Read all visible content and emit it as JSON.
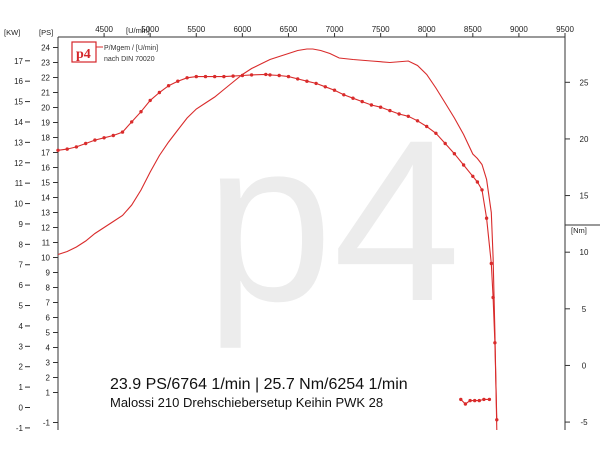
{
  "chart_data": {
    "type": "line",
    "rpm_unit": "[U/min]",
    "left_axis_units": [
      "[KW]",
      "[PS]"
    ],
    "right_axis_unit": "[Nm]",
    "x_ticks": [
      4500,
      5000,
      5500,
      6000,
      6500,
      7000,
      7500,
      8000,
      8500,
      9000,
      9500
    ],
    "xlim": [
      4000,
      9500
    ],
    "kw_ticks": [
      -1,
      0,
      1,
      2,
      3,
      4,
      5,
      6,
      7,
      8,
      9,
      10,
      11,
      12,
      13,
      14,
      15,
      16,
      17
    ],
    "ps_ticks": [
      -1,
      1,
      2,
      3,
      4,
      5,
      6,
      7,
      8,
      9,
      10,
      11,
      12,
      13,
      14,
      15,
      16,
      17,
      18,
      19,
      20,
      21,
      22,
      23,
      24
    ],
    "ps_lim": [
      -1.5,
      24.7
    ],
    "nm_ticks": [
      -5,
      0,
      5,
      10,
      15,
      20,
      25
    ],
    "nm_lim": [
      -5.7,
      29
    ],
    "legend_title": "P/Mgem / [U/min]",
    "legend_subtitle": "nach DIN 70020",
    "logo_text": "p4",
    "watermark_text": "p4",
    "summary_text": "23.9 PS/6764 1/min | 25.7 Nm/6254 1/min",
    "setup_text": "Malossi 210 Drehschiebersetup Keihin PWK 28",
    "series": [
      {
        "name": "P",
        "unit": "PS",
        "color": "#d92b2b",
        "x": [
          4000,
          4100,
          4200,
          4300,
          4400,
          4500,
          4600,
          4700,
          4800,
          4900,
          5000,
          5100,
          5200,
          5300,
          5400,
          5500,
          5600,
          5700,
          5800,
          5900,
          6000,
          6100,
          6200,
          6300,
          6400,
          6500,
          6600,
          6700,
          6764,
          6850,
          6950,
          7050,
          7200,
          7400,
          7600,
          7800,
          7900,
          8000,
          8100,
          8200,
          8300,
          8400,
          8500,
          8550,
          8600,
          8650,
          8700,
          8720,
          8740,
          8760
        ],
        "values": [
          10.2,
          10.4,
          10.7,
          11.1,
          11.6,
          12.0,
          12.4,
          12.8,
          13.5,
          14.5,
          15.7,
          16.8,
          17.7,
          18.5,
          19.3,
          19.9,
          20.3,
          20.7,
          21.2,
          21.7,
          22.2,
          22.6,
          22.9,
          23.2,
          23.4,
          23.6,
          23.8,
          23.9,
          23.9,
          23.8,
          23.6,
          23.3,
          23.2,
          23.1,
          23.0,
          23.1,
          22.8,
          22.2,
          21.3,
          20.3,
          19.3,
          18.2,
          16.9,
          16.6,
          16.2,
          15.2,
          13.0,
          10.0,
          5.0,
          -1.5
        ]
      },
      {
        "name": "Mgem",
        "unit": "Nm",
        "color": "#d92b2b",
        "x": [
          4000,
          4100,
          4200,
          4300,
          4400,
          4500,
          4600,
          4700,
          4800,
          4900,
          5000,
          5100,
          5200,
          5300,
          5400,
          5500,
          5600,
          5700,
          5800,
          5900,
          6000,
          6100,
          6254,
          6300,
          6400,
          6500,
          6600,
          6700,
          6800,
          6900,
          7000,
          7100,
          7200,
          7300,
          7400,
          7500,
          7600,
          7700,
          7800,
          7900,
          8000,
          8100,
          8200,
          8300,
          8400,
          8500,
          8550,
          8600,
          8650,
          8700,
          8720,
          8740,
          8760
        ],
        "values": [
          19.0,
          19.1,
          19.3,
          19.6,
          19.9,
          20.1,
          20.3,
          20.6,
          21.5,
          22.4,
          23.4,
          24.1,
          24.7,
          25.1,
          25.4,
          25.5,
          25.5,
          25.5,
          25.5,
          25.55,
          25.6,
          25.65,
          25.7,
          25.65,
          25.6,
          25.5,
          25.3,
          25.1,
          24.9,
          24.6,
          24.3,
          23.9,
          23.6,
          23.3,
          23.0,
          22.8,
          22.5,
          22.2,
          22.0,
          21.6,
          21.1,
          20.5,
          19.6,
          18.7,
          17.7,
          16.7,
          16.2,
          15.5,
          13.0,
          9.0,
          6.0,
          2.0,
          -4.8
        ]
      },
      {
        "name": "Mgem-tail",
        "unit": "Nm",
        "color": "#d92b2b",
        "x": [
          8370,
          8420,
          8470,
          8520,
          8570,
          8620,
          8680
        ],
        "values": [
          -3.0,
          -3.4,
          -3.1,
          -3.1,
          -3.1,
          -3.0,
          -3.0
        ]
      }
    ],
    "grid": false,
    "legend_position": "top-left"
  }
}
